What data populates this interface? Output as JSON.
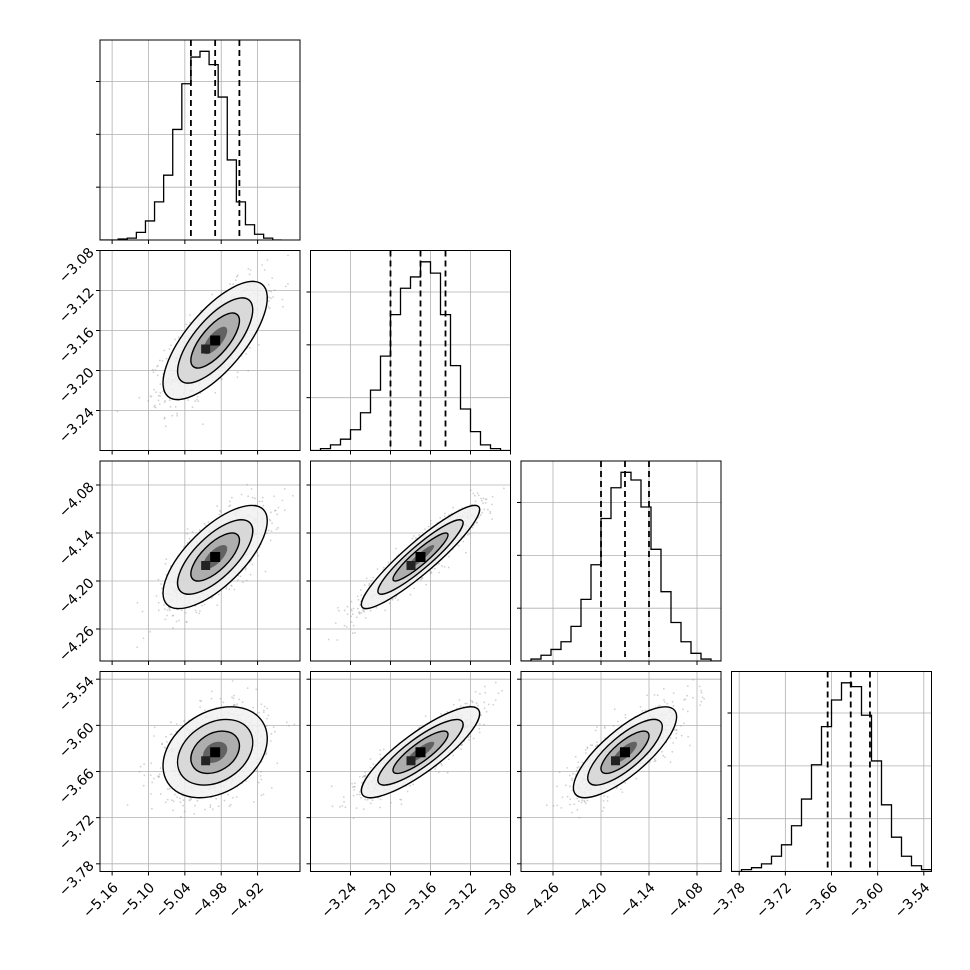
{
  "chart_data": {
    "type": "corner",
    "parameters": [
      {
        "axis_range": [
          -5.18,
          -4.85
        ],
        "ticks": [
          -5.16,
          -5.1,
          -5.04,
          -4.98,
          -4.92
        ],
        "tick_labels": [
          "−5.16",
          "−5.10",
          "−5.04",
          "−4.98",
          "−4.92"
        ],
        "quantiles": [
          -5.03,
          -4.99,
          -4.95
        ],
        "hist_bins": [
          -5.18,
          -5.165,
          -5.15,
          -5.135,
          -5.12,
          -5.105,
          -5.09,
          -5.075,
          -5.06,
          -5.045,
          -5.03,
          -5.015,
          -5.0,
          -4.985,
          -4.97,
          -4.955,
          -4.94,
          -4.925,
          -4.91,
          -4.895,
          -4.88
        ],
        "hist_values": [
          0,
          0,
          0.005,
          0.01,
          0.04,
          0.1,
          0.2,
          0.34,
          0.58,
          0.82,
          0.96,
          0.99,
          0.92,
          0.75,
          0.42,
          0.2,
          0.08,
          0.03,
          0.01,
          0
        ]
      },
      {
        "axis_range": [
          -3.28,
          -3.08
        ],
        "ticks": [
          -3.24,
          -3.2,
          -3.16,
          -3.12,
          -3.08
        ],
        "tick_labels": [
          "−3.24",
          "−3.20",
          "−3.16",
          "−3.12",
          "−3.08"
        ],
        "quantiles": [
          -3.2,
          -3.17,
          -3.145
        ],
        "hist_bins": [
          -3.28,
          -3.27,
          -3.26,
          -3.25,
          -3.24,
          -3.23,
          -3.22,
          -3.21,
          -3.2,
          -3.19,
          -3.18,
          -3.17,
          -3.16,
          -3.15,
          -3.14,
          -3.13,
          -3.12,
          -3.11,
          -3.1,
          -3.09,
          -3.08
        ],
        "hist_values": [
          0,
          0.01,
          0.03,
          0.06,
          0.11,
          0.2,
          0.32,
          0.5,
          0.72,
          0.86,
          0.92,
          1.0,
          0.94,
          0.72,
          0.45,
          0.22,
          0.1,
          0.03,
          0.01,
          0
        ]
      },
      {
        "axis_range": [
          -4.3,
          -4.05
        ],
        "ticks": [
          -4.26,
          -4.2,
          -4.14,
          -4.08
        ],
        "tick_labels": [
          "−4.26",
          "−4.20",
          "−4.14",
          "−4.08"
        ],
        "quantiles": [
          -4.2,
          -4.17,
          -4.14
        ],
        "hist_bins": [
          -4.3,
          -4.2875,
          -4.275,
          -4.2625,
          -4.25,
          -4.2375,
          -4.225,
          -4.2125,
          -4.2,
          -4.1875,
          -4.175,
          -4.1625,
          -4.15,
          -4.1375,
          -4.125,
          -4.1125,
          -4.1,
          -4.0875,
          -4.075,
          -4.0625,
          -4.05
        ],
        "hist_values": [
          0,
          0.01,
          0.03,
          0.06,
          0.1,
          0.18,
          0.32,
          0.5,
          0.74,
          0.9,
          0.98,
          0.94,
          0.8,
          0.58,
          0.36,
          0.2,
          0.1,
          0.04,
          0.01,
          0
        ]
      },
      {
        "axis_range": [
          -3.79,
          -3.53
        ],
        "ticks": [
          -3.78,
          -3.72,
          -3.66,
          -3.6,
          -3.54
        ],
        "tick_labels": [
          "−3.78",
          "−3.72",
          "−3.66",
          "−3.60",
          "−3.54"
        ],
        "quantiles": [
          -3.665,
          -3.635,
          -3.61
        ],
        "hist_bins": [
          -3.79,
          -3.777,
          -3.764,
          -3.751,
          -3.738,
          -3.725,
          -3.712,
          -3.699,
          -3.686,
          -3.673,
          -3.66,
          -3.647,
          -3.634,
          -3.621,
          -3.608,
          -3.595,
          -3.582,
          -3.569,
          -3.556,
          -3.543,
          -3.53
        ],
        "hist_values": [
          0,
          0.01,
          0.02,
          0.04,
          0.08,
          0.14,
          0.24,
          0.38,
          0.56,
          0.76,
          0.9,
          0.99,
          0.97,
          0.82,
          0.58,
          0.35,
          0.18,
          0.08,
          0.03,
          0.01
        ]
      }
    ],
    "pairs": [
      {
        "x": 0,
        "y": 1,
        "corr": 0.72
      },
      {
        "x": 0,
        "y": 2,
        "corr": 0.7
      },
      {
        "x": 1,
        "y": 2,
        "corr": 0.92
      },
      {
        "x": 0,
        "y": 3,
        "corr": 0.3
      },
      {
        "x": 1,
        "y": 3,
        "corr": 0.85
      },
      {
        "x": 2,
        "y": 3,
        "corr": 0.78
      }
    ],
    "grid": true,
    "colors": {
      "line": "#000000",
      "points": "#9a9a9a",
      "grid": "#b0b0b0"
    }
  }
}
